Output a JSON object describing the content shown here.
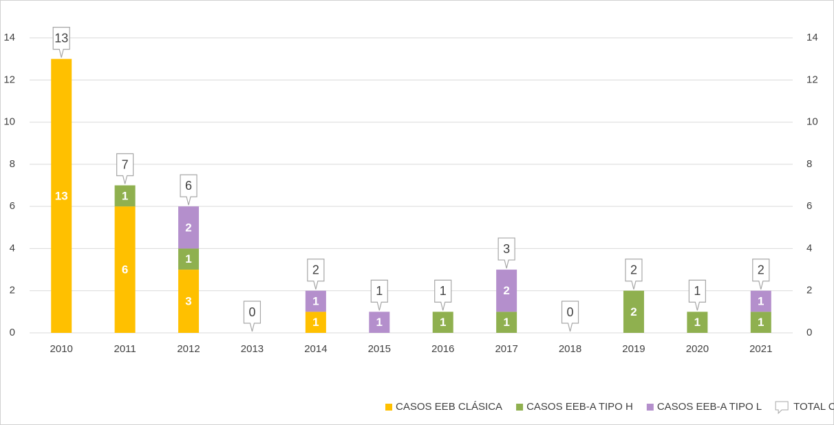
{
  "chart_data": {
    "type": "bar",
    "categories": [
      "2010",
      "2011",
      "2012",
      "2013",
      "2014",
      "2015",
      "2016",
      "2017",
      "2018",
      "2019",
      "2020",
      "2021"
    ],
    "series": [
      {
        "name": "CASOS EEB CLÁSICA",
        "color": "#ffc000",
        "values": [
          13,
          6,
          3,
          0,
          1,
          0,
          0,
          0,
          0,
          0,
          0,
          0
        ]
      },
      {
        "name": "CASOS EEB-A TIPO H",
        "color": "#8fb04f",
        "values": [
          0,
          1,
          1,
          0,
          0,
          0,
          1,
          1,
          0,
          2,
          1,
          1
        ]
      },
      {
        "name": "CASOS EEB-A TIPO L",
        "color": "#b48fcc",
        "values": [
          0,
          0,
          2,
          0,
          1,
          1,
          0,
          2,
          0,
          0,
          0,
          1
        ]
      },
      {
        "name": "TOTAL CASOS",
        "axis": "y2",
        "values": [
          13,
          7,
          6,
          0,
          2,
          1,
          1,
          3,
          0,
          2,
          1,
          2
        ]
      }
    ],
    "ylim": [
      0,
      14
    ],
    "yticks": [
      0,
      2,
      4,
      6,
      8,
      10,
      12,
      14
    ],
    "y2lim": [
      0,
      14
    ],
    "y2ticks": [
      0,
      2,
      4,
      6,
      8,
      10,
      12,
      14
    ],
    "grid": true,
    "legend": "bottom"
  }
}
